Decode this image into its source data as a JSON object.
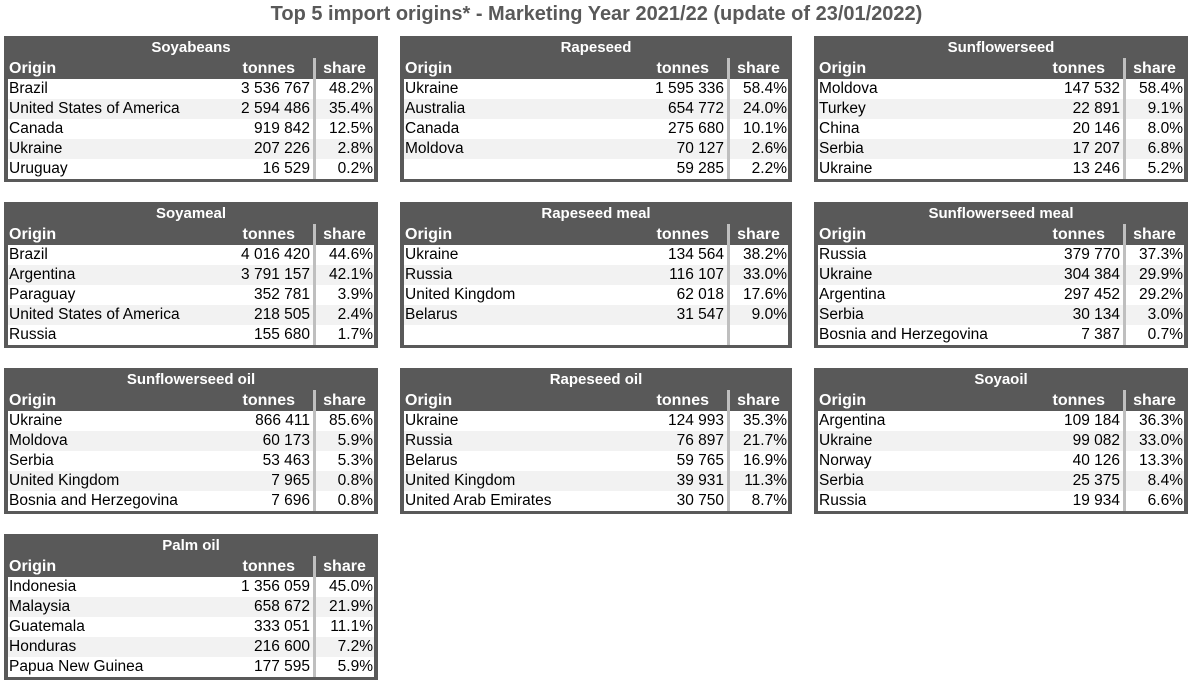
{
  "title": "Top 5 import origins* - Marketing Year 2021/22 (update of 23/01/2022)",
  "columns": {
    "origin": "Origin",
    "tonnes": "tonnes",
    "share": "share"
  },
  "tables": [
    {
      "name": "Soyabeans",
      "rows": [
        [
          "Brazil",
          "3 536 767",
          "48.2%"
        ],
        [
          "United States of America",
          "2 594 486",
          "35.4%"
        ],
        [
          "Canada",
          "919 842",
          "12.5%"
        ],
        [
          "Ukraine",
          "207 226",
          "2.8%"
        ],
        [
          "Uruguay",
          "16 529",
          "0.2%"
        ]
      ]
    },
    {
      "name": "Rapeseed",
      "rows": [
        [
          "Ukraine",
          "1 595 336",
          "58.4%"
        ],
        [
          "Australia",
          "654 772",
          "24.0%"
        ],
        [
          "Canada",
          "275 680",
          "10.1%"
        ],
        [
          "Moldova",
          "70 127",
          "2.6%"
        ],
        [
          "",
          "59 285",
          "2.2%"
        ]
      ]
    },
    {
      "name": "Sunflowerseed",
      "rows": [
        [
          "Moldova",
          "147 532",
          "58.4%"
        ],
        [
          "Turkey",
          "22 891",
          "9.1%"
        ],
        [
          "China",
          "20 146",
          "8.0%"
        ],
        [
          "Serbia",
          "17 207",
          "6.8%"
        ],
        [
          "Ukraine",
          "13 246",
          "5.2%"
        ]
      ]
    },
    {
      "name": "Soyameal",
      "rows": [
        [
          "Brazil",
          "4 016 420",
          "44.6%"
        ],
        [
          "Argentina",
          "3 791 157",
          "42.1%"
        ],
        [
          "Paraguay",
          "352 781",
          "3.9%"
        ],
        [
          "United States of America",
          "218 505",
          "2.4%"
        ],
        [
          "Russia",
          "155 680",
          "1.7%"
        ]
      ]
    },
    {
      "name": "Rapeseed meal",
      "rows": [
        [
          "Ukraine",
          "134 564",
          "38.2%"
        ],
        [
          "Russia",
          "116 107",
          "33.0%"
        ],
        [
          "United Kingdom",
          "62 018",
          "17.6%"
        ],
        [
          "Belarus",
          "31 547",
          "9.0%"
        ],
        [
          "",
          "",
          ""
        ]
      ]
    },
    {
      "name": "Sunflowerseed meal",
      "rows": [
        [
          "Russia",
          "379 770",
          "37.3%"
        ],
        [
          "Ukraine",
          "304 384",
          "29.9%"
        ],
        [
          "Argentina",
          "297 452",
          "29.2%"
        ],
        [
          "Serbia",
          "30 134",
          "3.0%"
        ],
        [
          "Bosnia and Herzegovina",
          "7 387",
          "0.7%"
        ]
      ]
    },
    {
      "name": "Sunflowerseed oil",
      "rows": [
        [
          "Ukraine",
          "866 411",
          "85.6%"
        ],
        [
          "Moldova",
          "60 173",
          "5.9%"
        ],
        [
          "Serbia",
          "53 463",
          "5.3%"
        ],
        [
          "United Kingdom",
          "7 965",
          "0.8%"
        ],
        [
          "Bosnia and Herzegovina",
          "7 696",
          "0.8%"
        ]
      ]
    },
    {
      "name": "Rapeseed oil",
      "rows": [
        [
          "Ukraine",
          "124 993",
          "35.3%"
        ],
        [
          "Russia",
          "76 897",
          "21.7%"
        ],
        [
          "Belarus",
          "59 765",
          "16.9%"
        ],
        [
          "United Kingdom",
          "39 931",
          "11.3%"
        ],
        [
          "United Arab Emirates",
          "30 750",
          "8.7%"
        ]
      ]
    },
    {
      "name": "Soyaoil",
      "rows": [
        [
          "Argentina",
          "109 184",
          "36.3%"
        ],
        [
          "Ukraine",
          "99 082",
          "33.0%"
        ],
        [
          "Norway",
          "40 126",
          "13.3%"
        ],
        [
          "Serbia",
          "25 375",
          "8.4%"
        ],
        [
          "Russia",
          "19 934",
          "6.6%"
        ]
      ]
    },
    {
      "name": "Palm oil",
      "rows": [
        [
          "Indonesia",
          "1 356 059",
          "45.0%"
        ],
        [
          "Malaysia",
          "658 672",
          "21.9%"
        ],
        [
          "Guatemala",
          "333 051",
          "11.1%"
        ],
        [
          "Honduras",
          "216 600",
          "7.2%"
        ],
        [
          "Papua New Guinea",
          "177 595",
          "5.9%"
        ]
      ]
    }
  ]
}
